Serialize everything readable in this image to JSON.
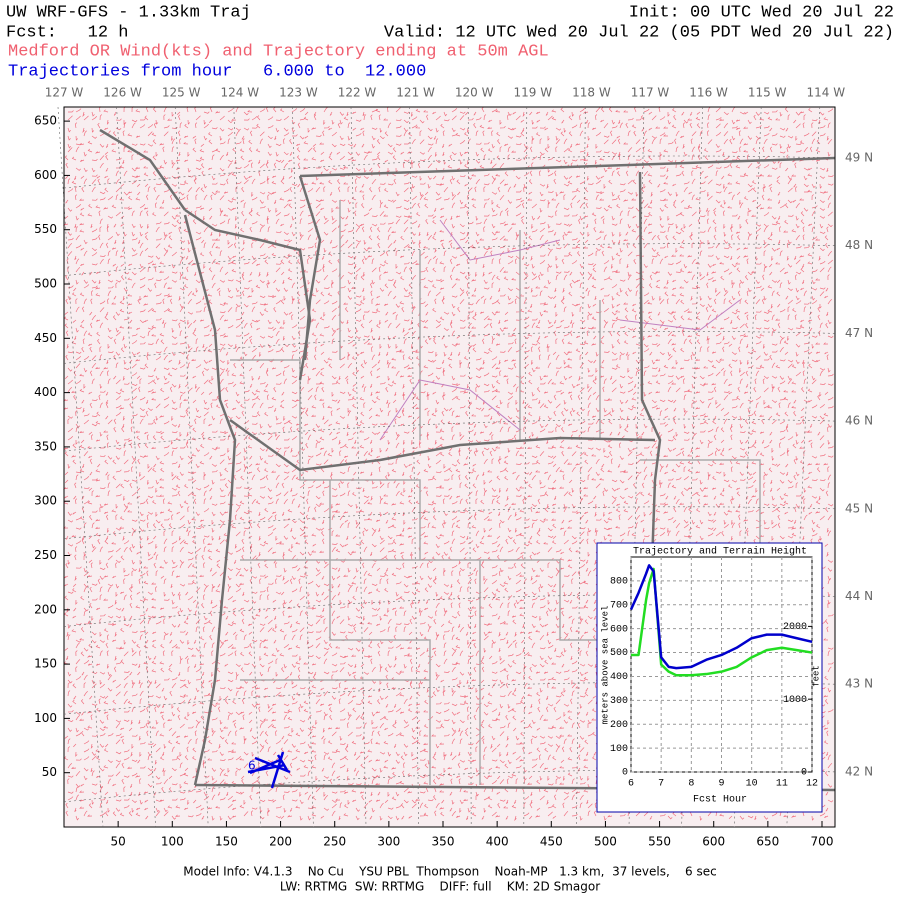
{
  "header": {
    "title": "UW WRF-GFS - 1.33km Traj",
    "init": "Init: 00 UTC Wed 20 Jul 22",
    "fcst": "Fcst:   12 h",
    "valid": "Valid: 12 UTC Wed 20 Jul 22 (05 PDT Wed 20 Jul 22)",
    "subtitle": "Medford OR Wind(kts) and Trajectory ending at 50m AGL",
    "trajectories": "Trajectories from hour   6.000 to  12.000"
  },
  "map": {
    "xlim": [
      0,
      712
    ],
    "xticks": [
      50,
      100,
      150,
      200,
      250,
      300,
      350,
      400,
      450,
      500,
      550,
      600,
      650,
      700
    ],
    "ylim": [
      0,
      663
    ],
    "yticks": [
      50,
      100,
      150,
      200,
      250,
      300,
      350,
      400,
      450,
      500,
      550,
      600,
      650
    ],
    "lon_labels": [
      "127 W",
      "126 W",
      "125 W",
      "124 W",
      "123 W",
      "122 W",
      "121 W",
      "120 W",
      "119 W",
      "118 W",
      "117 W",
      "116 W",
      "115 W",
      "114 W"
    ],
    "lat_labels": [
      "49 N",
      "48 N",
      "47 N",
      "46 N",
      "45 N",
      "44 N",
      "43 N",
      "42 N"
    ],
    "trajectory_label": "6"
  },
  "chart_data": {
    "type": "line",
    "title": "Trajectory and Terrain Height",
    "x_label": "Fcst Hour",
    "y_label": "meters above sea level",
    "y2_label": "feet",
    "x": [
      6,
      6.25,
      6.5,
      6.6,
      6.75,
      7,
      7.25,
      7.5,
      8,
      8.5,
      9,
      9.5,
      10,
      10.5,
      11,
      11.5,
      12
    ],
    "series": [
      {
        "name": "trajectory",
        "color": "#0000cc",
        "values": [
          680,
          750,
          830,
          865,
          840,
          480,
          440,
          435,
          440,
          470,
          490,
          520,
          560,
          575,
          575,
          560,
          545
        ]
      },
      {
        "name": "terrain",
        "color": "#22dd22",
        "values": [
          490,
          490,
          720,
          790,
          850,
          450,
          420,
          405,
          405,
          410,
          420,
          440,
          480,
          510,
          520,
          510,
          500
        ]
      }
    ],
    "xlim": [
      6,
      12
    ],
    "xticks": [
      6,
      7,
      8,
      9,
      10,
      11,
      12
    ],
    "ylim": [
      0,
      900
    ],
    "yticks": [
      0,
      100,
      200,
      300,
      400,
      500,
      600,
      700,
      800
    ],
    "y2lim": [
      0,
      2953
    ],
    "y2ticks": [
      0,
      1000,
      2000
    ],
    "grid": true
  },
  "footer": {
    "line1": "Model Info: V4.1.3    No Cu    YSU PBL  Thompson    Noah-MP   1.3 km,  37 levels,    6 sec",
    "line2": "LW: RRTMG  SW: RRTMG    DIFF: full    KM: 2D Smagor"
  }
}
